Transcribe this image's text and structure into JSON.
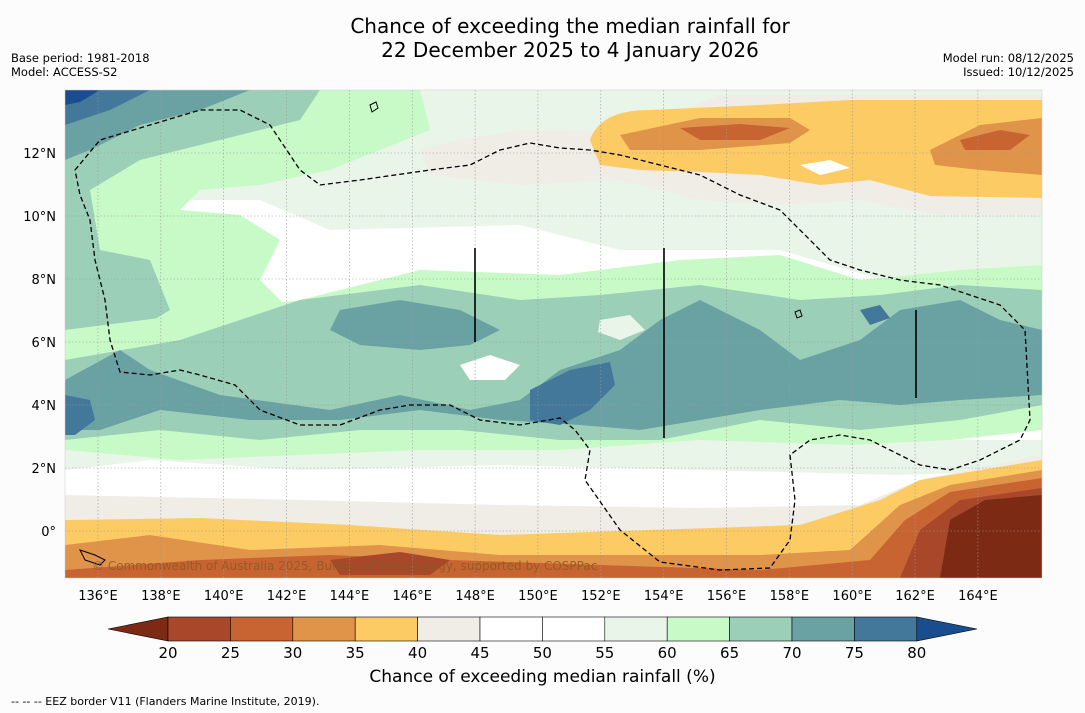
{
  "title": {
    "line1": "Chance of exceeding the median rainfall for",
    "line2": "22 December 2025 to 4 January 2026"
  },
  "meta": {
    "base_period": "Base period: 1981-2018",
    "model": "Model: ACCESS-S2",
    "model_run": "Model run: 08/12/2025",
    "issued": "Issued: 10/12/2025"
  },
  "copyright": "© Commonwealth of Australia 2025, Bureau of Meteorology, supported by COSPPac",
  "footnote": "--  --  -- EEZ border V11 (Flanders Marine Institute, 2019).",
  "map": {
    "lon_ticks": [
      "136°E",
      "138°E",
      "140°E",
      "142°E",
      "144°E",
      "146°E",
      "148°E",
      "150°E",
      "152°E",
      "154°E",
      "156°E",
      "158°E",
      "160°E",
      "162°E",
      "164°E"
    ],
    "lat_ticks": [
      "12°N",
      "10°N",
      "8°N",
      "6°N",
      "4°N",
      "2°N",
      "0°"
    ]
  },
  "legend": {
    "title": "Chance of exceeding median rainfall (%)",
    "ticks": [
      "20",
      "25",
      "30",
      "35",
      "40",
      "45",
      "50",
      "55",
      "60",
      "65",
      "70",
      "75",
      "80"
    ],
    "colors": {
      "below20": "#7d2a14",
      "c20_25": "#a8472a",
      "c25_30": "#c86432",
      "c30_35": "#e09449",
      "c35_40": "#fdcb64",
      "c40_45": "#f0ece6",
      "c45_50": "#ffffff",
      "c50_55": "#ffffff",
      "c55_60": "#eaf5ea",
      "c60_65": "#c8fac8",
      "c65_70": "#9bcfb7",
      "c70_75": "#6aa2a4",
      "c75_80": "#43789a",
      "above80": "#1a4d8e"
    }
  }
}
